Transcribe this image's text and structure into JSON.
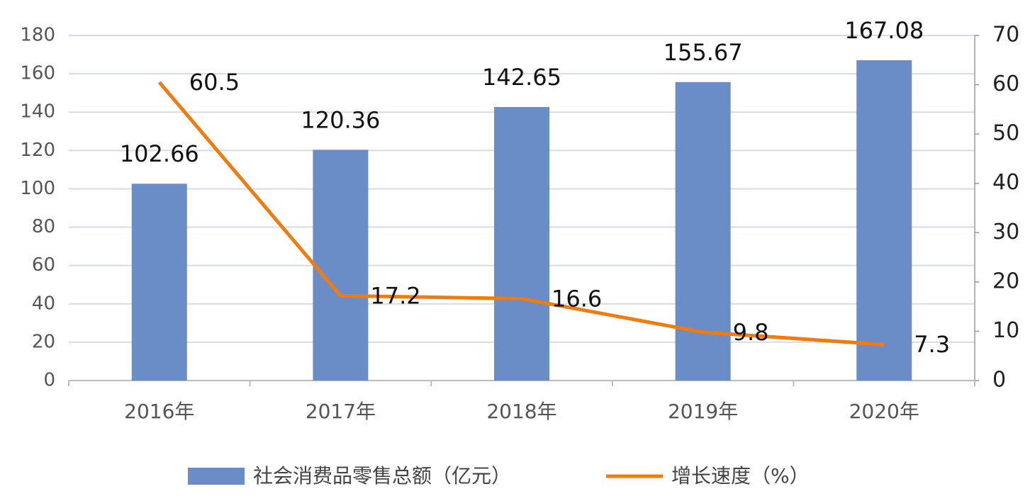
{
  "chart_data": {
    "type": "bar",
    "categories": [
      "2016年",
      "2017年",
      "2018年",
      "2019年",
      "2020年"
    ],
    "series": [
      {
        "name": "社会消费品零售总额（亿元）",
        "type": "bar",
        "color": "#6a8dc8",
        "values": [
          102.66,
          120.36,
          142.65,
          155.67,
          167.08
        ]
      },
      {
        "name": "增长速度（%）",
        "type": "line",
        "axis": "y2",
        "color": "#f07c10",
        "values": [
          60.5,
          17.2,
          16.6,
          9.8,
          7.3
        ]
      }
    ],
    "ylim": [
      0,
      180
    ],
    "yticks": [
      0,
      20,
      40,
      60,
      80,
      100,
      120,
      140,
      160,
      180
    ],
    "y2lim": [
      0,
      70
    ],
    "y2ticks": [
      0,
      10,
      20,
      30,
      40,
      50,
      60,
      70
    ],
    "grid": true,
    "legend": "bottom"
  }
}
